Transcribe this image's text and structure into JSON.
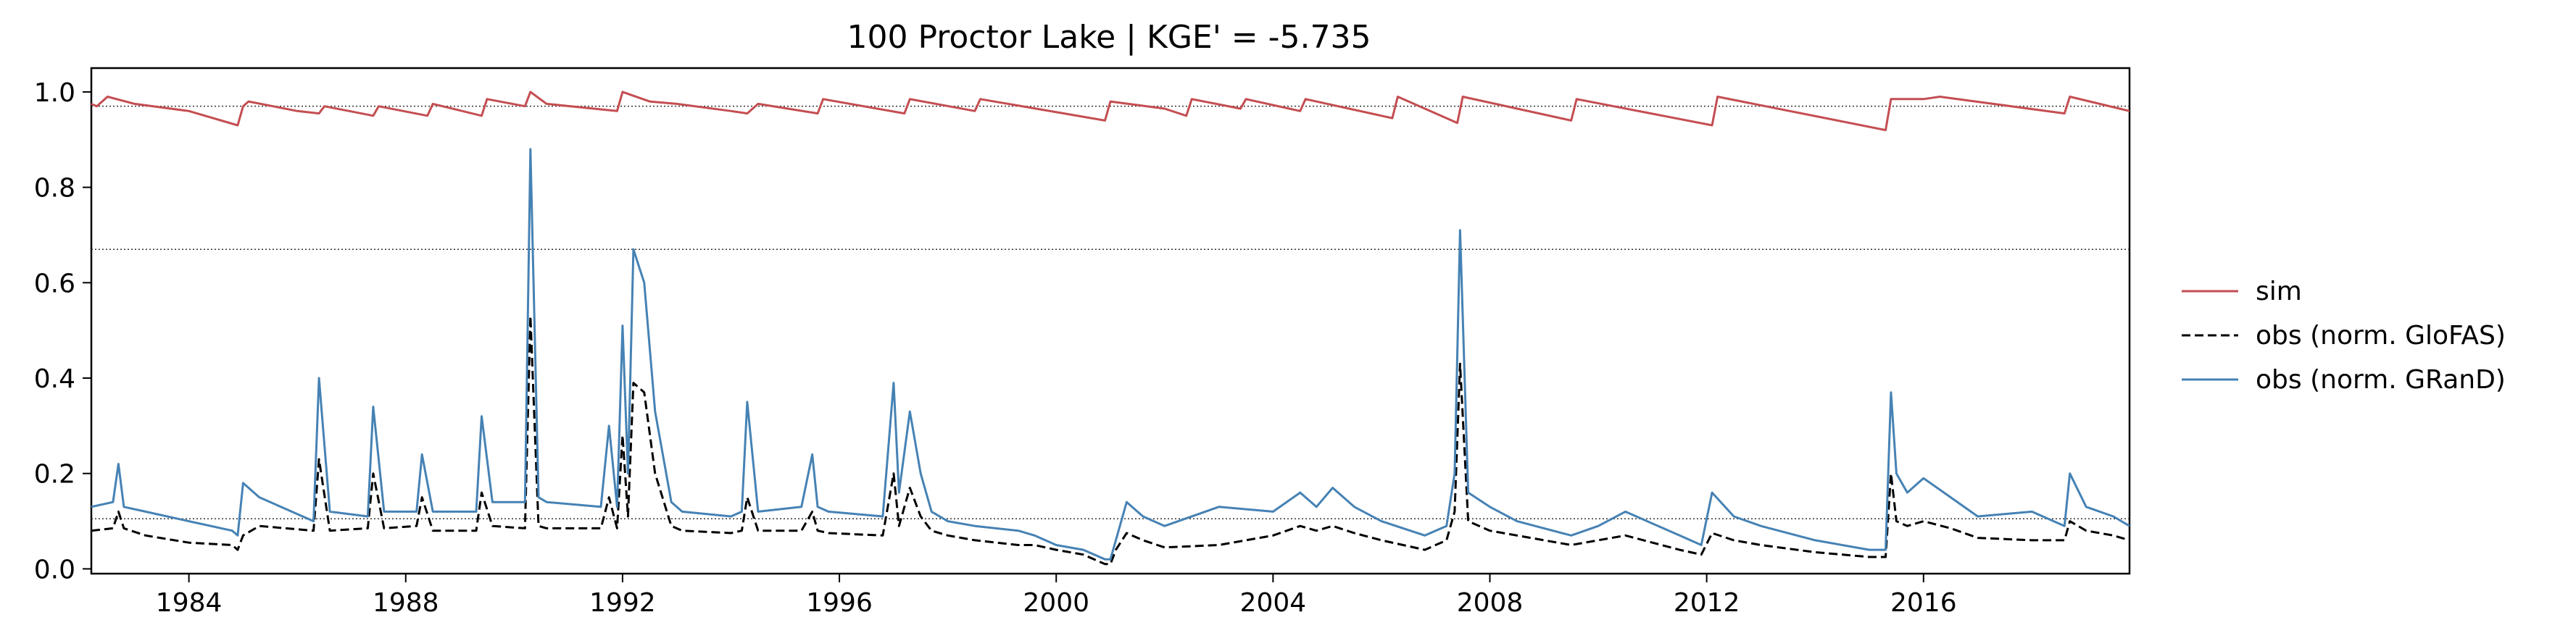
{
  "chart_data": {
    "type": "line",
    "title": "100  Proctor Lake | KGE' = -5.735",
    "xlabel": "",
    "ylabel": "",
    "xlim": [
      1982.2,
      2019.8
    ],
    "ylim": [
      -0.01,
      1.05
    ],
    "x_ticks": [
      1984,
      1988,
      1992,
      1996,
      2000,
      2004,
      2008,
      2012,
      2016
    ],
    "y_ticks": [
      0.0,
      0.2,
      0.4,
      0.6,
      0.8,
      1.0
    ],
    "y_tick_labels": [
      "0.0",
      "0.2",
      "0.4",
      "0.6",
      "0.8",
      "1.0"
    ],
    "grid": false,
    "legend_position": "right, outside plot",
    "reference_lines": [
      0.97,
      0.67,
      0.105
    ],
    "series": [
      {
        "name": "sim",
        "color": "#c44e52",
        "style": "solid",
        "x": [
          1982.2,
          1982.3,
          1982.5,
          1983.0,
          1984.0,
          1984.9,
          1985.0,
          1985.1,
          1986.0,
          1986.4,
          1986.5,
          1987.4,
          1987.5,
          1988.4,
          1988.5,
          1989.4,
          1989.5,
          1990.2,
          1990.3,
          1990.6,
          1991.9,
          1992.0,
          1992.5,
          1993.0,
          1994.0,
          1994.3,
          1994.5,
          1995.6,
          1995.7,
          1997.2,
          1997.3,
          1998.5,
          1998.6,
          2000.9,
          2001.0,
          2002.0,
          2002.4,
          2002.5,
          2003.4,
          2003.5,
          2004.5,
          2004.6,
          2006.2,
          2006.3,
          2007.4,
          2007.5,
          2009.5,
          2009.6,
          2012.1,
          2012.2,
          2015.3,
          2015.4,
          2016.0,
          2016.3,
          2018.6,
          2018.7,
          2019.8
        ],
        "values": [
          0.975,
          0.97,
          0.99,
          0.975,
          0.96,
          0.93,
          0.97,
          0.98,
          0.96,
          0.955,
          0.97,
          0.95,
          0.97,
          0.95,
          0.975,
          0.95,
          0.985,
          0.97,
          1.0,
          0.975,
          0.96,
          1.0,
          0.98,
          0.975,
          0.96,
          0.955,
          0.975,
          0.955,
          0.985,
          0.955,
          0.985,
          0.96,
          0.985,
          0.94,
          0.98,
          0.965,
          0.95,
          0.985,
          0.965,
          0.985,
          0.96,
          0.985,
          0.945,
          0.99,
          0.935,
          0.99,
          0.94,
          0.985,
          0.93,
          0.99,
          0.92,
          0.985,
          0.985,
          0.99,
          0.955,
          0.99,
          0.96
        ]
      },
      {
        "name": "obs (norm. GloFAS)",
        "color": "#000000",
        "style": "dashed",
        "x": [
          1982.2,
          1982.6,
          1982.7,
          1982.8,
          1983.2,
          1984.0,
          1984.8,
          1984.9,
          1985.0,
          1985.3,
          1986.3,
          1986.4,
          1986.6,
          1987.3,
          1987.4,
          1987.6,
          1988.2,
          1988.3,
          1988.5,
          1989.3,
          1989.4,
          1989.6,
          1990.2,
          1990.3,
          1990.45,
          1990.6,
          1991.6,
          1991.75,
          1991.9,
          1992.0,
          1992.1,
          1992.2,
          1992.4,
          1992.6,
          1992.9,
          1993.1,
          1994.0,
          1994.2,
          1994.3,
          1994.5,
          1995.3,
          1995.5,
          1995.6,
          1995.8,
          1996.8,
          1997.0,
          1997.1,
          1997.3,
          1997.5,
          1997.7,
          1998.0,
          1998.5,
          1999.3,
          1999.6,
          2000.0,
          2000.5,
          2000.9,
          2001.0,
          2001.1,
          2001.3,
          2001.6,
          2002.0,
          2003.0,
          2004.0,
          2004.5,
          2004.8,
          2005.1,
          2005.5,
          2006.0,
          2006.8,
          2007.2,
          2007.35,
          2007.45,
          2007.6,
          2008.0,
          2008.5,
          2009.5,
          2010.0,
          2010.5,
          2011.5,
          2011.9,
          2012.1,
          2012.5,
          2013.0,
          2014.0,
          2015.0,
          2015.3,
          2015.4,
          2015.5,
          2015.7,
          2016.0,
          2016.5,
          2017.0,
          2018.0,
          2018.6,
          2018.7,
          2019.0,
          2019.5,
          2019.8
        ],
        "values": [
          0.08,
          0.085,
          0.12,
          0.085,
          0.07,
          0.055,
          0.05,
          0.04,
          0.07,
          0.09,
          0.08,
          0.23,
          0.08,
          0.085,
          0.2,
          0.085,
          0.09,
          0.15,
          0.08,
          0.08,
          0.16,
          0.09,
          0.085,
          0.53,
          0.09,
          0.085,
          0.085,
          0.15,
          0.085,
          0.28,
          0.11,
          0.39,
          0.37,
          0.2,
          0.09,
          0.08,
          0.075,
          0.08,
          0.15,
          0.08,
          0.08,
          0.12,
          0.08,
          0.075,
          0.07,
          0.2,
          0.09,
          0.17,
          0.11,
          0.08,
          0.07,
          0.06,
          0.05,
          0.05,
          0.04,
          0.03,
          0.01,
          0.01,
          0.04,
          0.075,
          0.06,
          0.045,
          0.05,
          0.07,
          0.09,
          0.08,
          0.09,
          0.075,
          0.06,
          0.04,
          0.06,
          0.12,
          0.43,
          0.1,
          0.08,
          0.07,
          0.05,
          0.06,
          0.07,
          0.04,
          0.03,
          0.075,
          0.06,
          0.05,
          0.035,
          0.025,
          0.025,
          0.2,
          0.1,
          0.09,
          0.1,
          0.085,
          0.065,
          0.06,
          0.06,
          0.1,
          0.08,
          0.07,
          0.06
        ]
      },
      {
        "name": "obs (norm. GRanD)",
        "color": "#4682b4",
        "style": "solid",
        "x": [
          1982.2,
          1982.6,
          1982.7,
          1982.8,
          1983.2,
          1984.0,
          1984.8,
          1984.9,
          1985.0,
          1985.3,
          1986.3,
          1986.4,
          1986.6,
          1987.3,
          1987.4,
          1987.6,
          1988.2,
          1988.3,
          1988.5,
          1989.3,
          1989.4,
          1989.6,
          1990.2,
          1990.3,
          1990.45,
          1990.6,
          1991.6,
          1991.75,
          1991.9,
          1992.0,
          1992.1,
          1992.2,
          1992.4,
          1992.6,
          1992.9,
          1993.1,
          1994.0,
          1994.2,
          1994.3,
          1994.5,
          1995.3,
          1995.5,
          1995.6,
          1995.8,
          1996.8,
          1997.0,
          1997.1,
          1997.3,
          1997.5,
          1997.7,
          1998.0,
          1998.5,
          1999.3,
          1999.6,
          2000.0,
          2000.5,
          2000.9,
          2001.0,
          2001.1,
          2001.3,
          2001.6,
          2002.0,
          2003.0,
          2004.0,
          2004.5,
          2004.8,
          2005.1,
          2005.5,
          2006.0,
          2006.8,
          2007.2,
          2007.35,
          2007.45,
          2007.6,
          2008.0,
          2008.5,
          2009.5,
          2010.0,
          2010.5,
          2011.5,
          2011.9,
          2012.1,
          2012.5,
          2013.0,
          2014.0,
          2015.0,
          2015.3,
          2015.4,
          2015.5,
          2015.7,
          2016.0,
          2016.5,
          2017.0,
          2018.0,
          2018.6,
          2018.7,
          2019.0,
          2019.5,
          2019.8
        ],
        "values": [
          0.13,
          0.14,
          0.22,
          0.13,
          0.12,
          0.1,
          0.08,
          0.07,
          0.18,
          0.15,
          0.1,
          0.4,
          0.12,
          0.11,
          0.34,
          0.12,
          0.12,
          0.24,
          0.12,
          0.12,
          0.32,
          0.14,
          0.14,
          0.88,
          0.15,
          0.14,
          0.13,
          0.3,
          0.13,
          0.51,
          0.2,
          0.67,
          0.6,
          0.33,
          0.14,
          0.12,
          0.11,
          0.12,
          0.35,
          0.12,
          0.13,
          0.24,
          0.13,
          0.12,
          0.11,
          0.39,
          0.16,
          0.33,
          0.2,
          0.12,
          0.1,
          0.09,
          0.08,
          0.07,
          0.05,
          0.04,
          0.02,
          0.02,
          0.06,
          0.14,
          0.11,
          0.09,
          0.13,
          0.12,
          0.16,
          0.13,
          0.17,
          0.13,
          0.1,
          0.07,
          0.09,
          0.2,
          0.71,
          0.16,
          0.13,
          0.1,
          0.07,
          0.09,
          0.12,
          0.07,
          0.05,
          0.16,
          0.11,
          0.09,
          0.06,
          0.04,
          0.04,
          0.37,
          0.2,
          0.16,
          0.19,
          0.15,
          0.11,
          0.12,
          0.09,
          0.2,
          0.13,
          0.11,
          0.09
        ]
      }
    ]
  }
}
